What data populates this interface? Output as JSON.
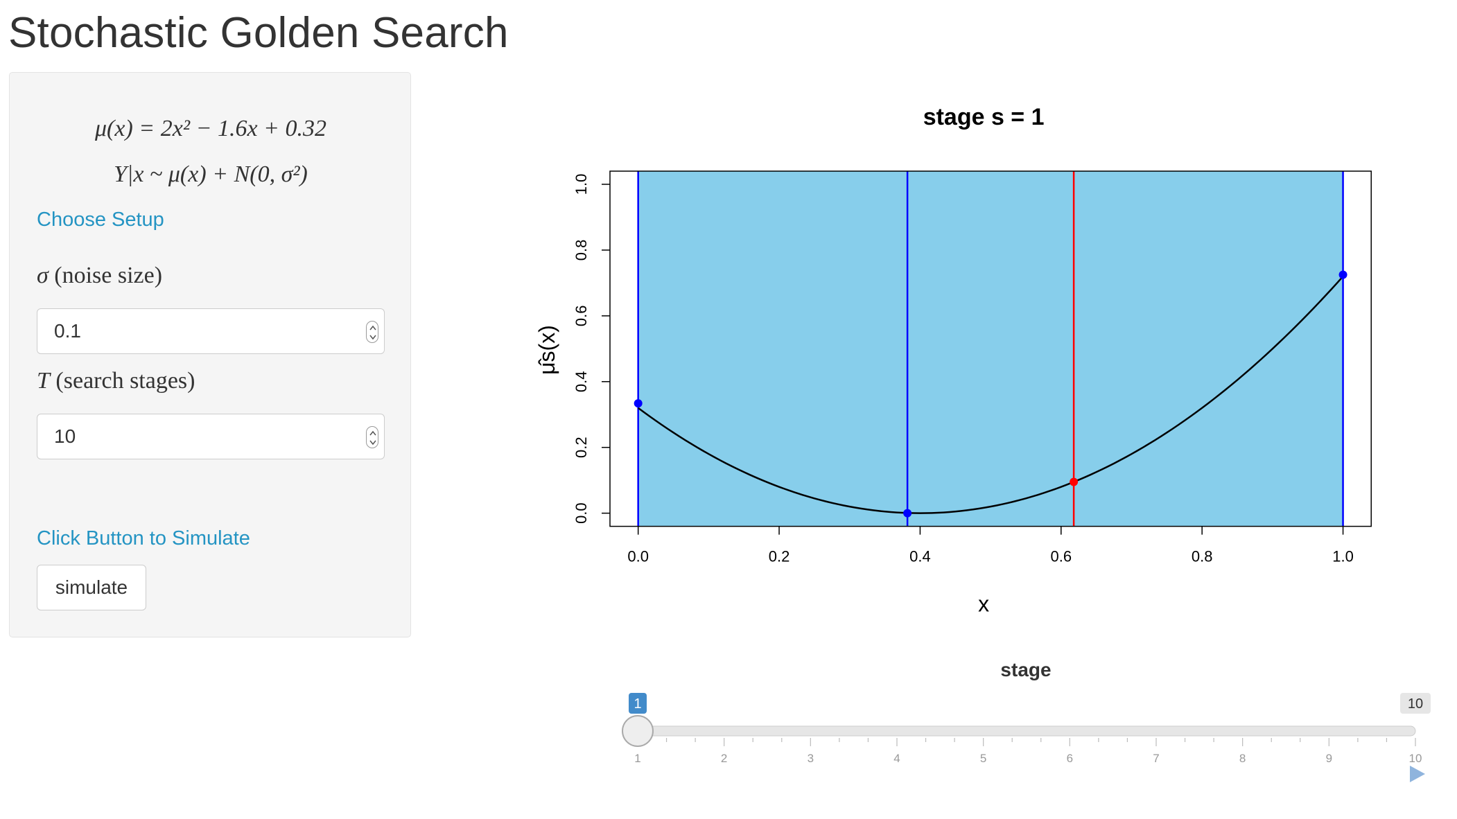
{
  "app": {
    "title": "Stochastic Golden Search"
  },
  "sidebar": {
    "mean_function": "μ(x) = 2x² − 1.6x + 0.32",
    "model": "Y|x ~ μ(x) + N(0, σ²)",
    "setup_heading": "Choose Setup",
    "sigma_symbol": "σ",
    "sigma_text": "(noise size)",
    "sigma_value": "0.1",
    "t_symbol": "T",
    "t_text": "(search stages)",
    "t_value": "10",
    "simulate_heading": "Click Button to Simulate",
    "simulate_label": "simulate"
  },
  "colors": {
    "panel": "#f5f5f5",
    "accent": "#2494c3",
    "region": "#87ceeb",
    "bracket_line": "#0000ff",
    "probe_line": "#ff0000",
    "curve": "#000000",
    "slider_handle": "#428bca"
  },
  "chart_data": {
    "type": "line",
    "title": "stage s =  1",
    "xlabel": "x",
    "ylabel": "μ̂s(x)",
    "xlim": [
      0,
      1
    ],
    "ylim": [
      0,
      1
    ],
    "xticks": [
      "0.0",
      "0.2",
      "0.4",
      "0.6",
      "0.8",
      "1.0"
    ],
    "yticks": [
      "0.0",
      "0.2",
      "0.4",
      "0.6",
      "0.8",
      "1.0"
    ],
    "shaded_interval": [
      0,
      1
    ],
    "vertical_lines": [
      {
        "x": 0.0,
        "color": "blue"
      },
      {
        "x": 0.382,
        "color": "blue"
      },
      {
        "x": 0.618,
        "color": "red"
      },
      {
        "x": 1.0,
        "color": "blue"
      }
    ],
    "points": [
      {
        "x": 0.0,
        "y": 0.334,
        "color": "blue"
      },
      {
        "x": 0.382,
        "y": 0.0,
        "color": "blue"
      },
      {
        "x": 0.618,
        "y": 0.095,
        "color": "red"
      },
      {
        "x": 1.0,
        "y": 0.725,
        "color": "blue"
      }
    ],
    "curve": {
      "a": 2.0,
      "b": -1.6,
      "c": 0.32,
      "x": [
        0,
        1
      ]
    }
  },
  "slider": {
    "label": "stage",
    "min": 1,
    "max": 10,
    "value": 1,
    "min_label": "1",
    "value_label": "1",
    "max_label": "10",
    "ticks": [
      "1",
      "2",
      "3",
      "4",
      "5",
      "6",
      "7",
      "8",
      "9",
      "10"
    ]
  }
}
